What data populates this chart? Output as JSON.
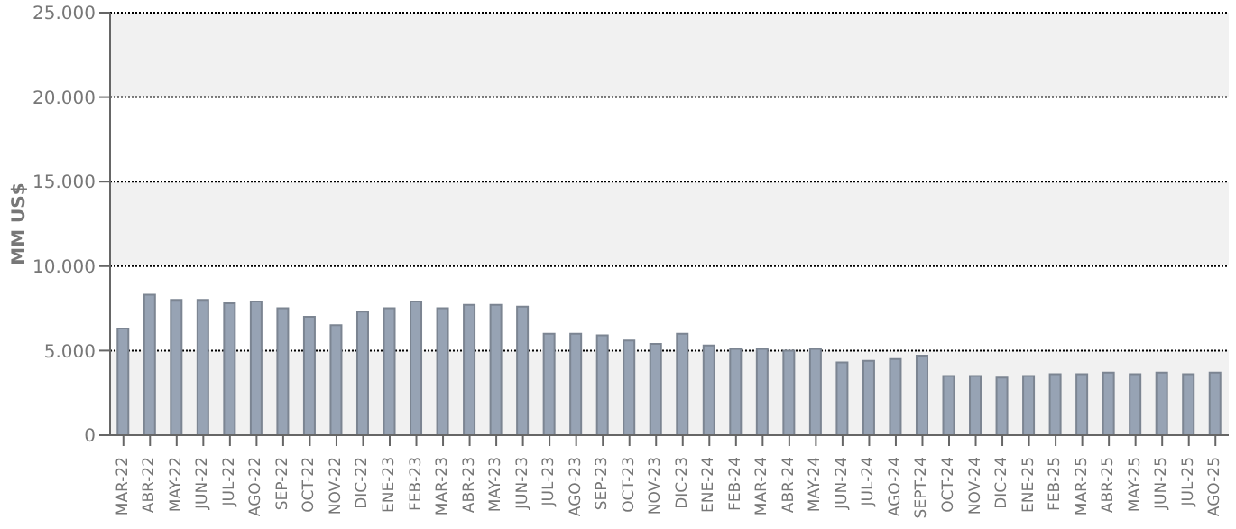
{
  "chart_data": {
    "type": "bar",
    "ylabel": "MM US$",
    "categories": [
      "MAR-22",
      "ABR-22",
      "MAY-22",
      "JUN-22",
      "JUL-22",
      "AGO-22",
      "SEP-22",
      "OCT-22",
      "NOV-22",
      "DIC-22",
      "ENE-23",
      "FEB-23",
      "MAR-23",
      "ABR-23",
      "MAY-23",
      "JUN-23",
      "JUL-23",
      "AGO-23",
      "SEP-23",
      "OCT-23",
      "NOV-23",
      "DIC-23",
      "ENE-24",
      "FEB-24",
      "MAR-24",
      "ABR-24",
      "MAY-24",
      "JUN-24",
      "JUL-24",
      "AGO-24",
      "SEPT-24",
      "OCT-24",
      "NOV-24",
      "DIC-24",
      "ENE-25",
      "FEB-25",
      "MAR-25",
      "ABR-25",
      "MAY-25",
      "JUN-25",
      "JUL-25",
      "AGO-25"
    ],
    "values": [
      6300,
      8300,
      8000,
      8000,
      7800,
      7900,
      7500,
      7000,
      6500,
      7300,
      7500,
      7900,
      7500,
      7700,
      7700,
      7600,
      6000,
      6000,
      5900,
      5600,
      5400,
      6000,
      5300,
      5100,
      5100,
      5000,
      5100,
      4300,
      4400,
      4500,
      4700,
      3500,
      3500,
      3400,
      3500,
      3600,
      3600,
      3700,
      3600,
      3700,
      3600,
      3700
    ],
    "color": "#97a3b4",
    "ylim": [
      0,
      25000
    ],
    "yticks": [
      {
        "value": 0,
        "label": "0"
      },
      {
        "value": 5000,
        "label": "5.000"
      },
      {
        "value": 10000,
        "label": "10.000"
      },
      {
        "value": 15000,
        "label": "15.000"
      },
      {
        "value": 20000,
        "label": "20.000"
      },
      {
        "value": 25000,
        "label": "25.000"
      }
    ],
    "grid": "y"
  }
}
